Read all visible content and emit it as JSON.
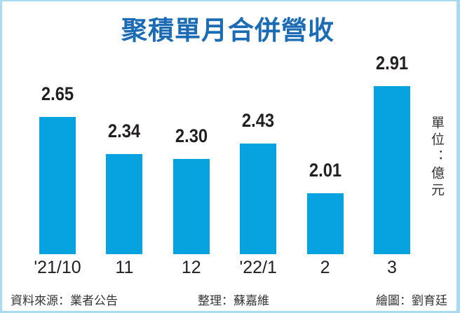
{
  "chart_data": {
    "type": "bar",
    "title": "聚積單月合併營收",
    "categories": [
      "'21/10",
      "11",
      "12",
      "'22/1",
      "2",
      "3"
    ],
    "values": [
      2.65,
      2.34,
      2.3,
      2.43,
      2.01,
      2.91
    ],
    "value_labels": [
      "2.65",
      "2.34",
      "2.30",
      "2.43",
      "2.01",
      "2.91"
    ],
    "xlabel": "",
    "ylabel": "單位：億元",
    "ylim": [
      1.5,
      3.0
    ],
    "grid": false,
    "legend": null,
    "colors": {
      "bar": "#07a2e0",
      "title": "#1b6cb4",
      "frame": "#a8daf2"
    }
  },
  "footer": {
    "source": "資料來源：業者公告",
    "editor": "整理：蘇嘉維",
    "graphics": "繪圖：劉育廷"
  }
}
